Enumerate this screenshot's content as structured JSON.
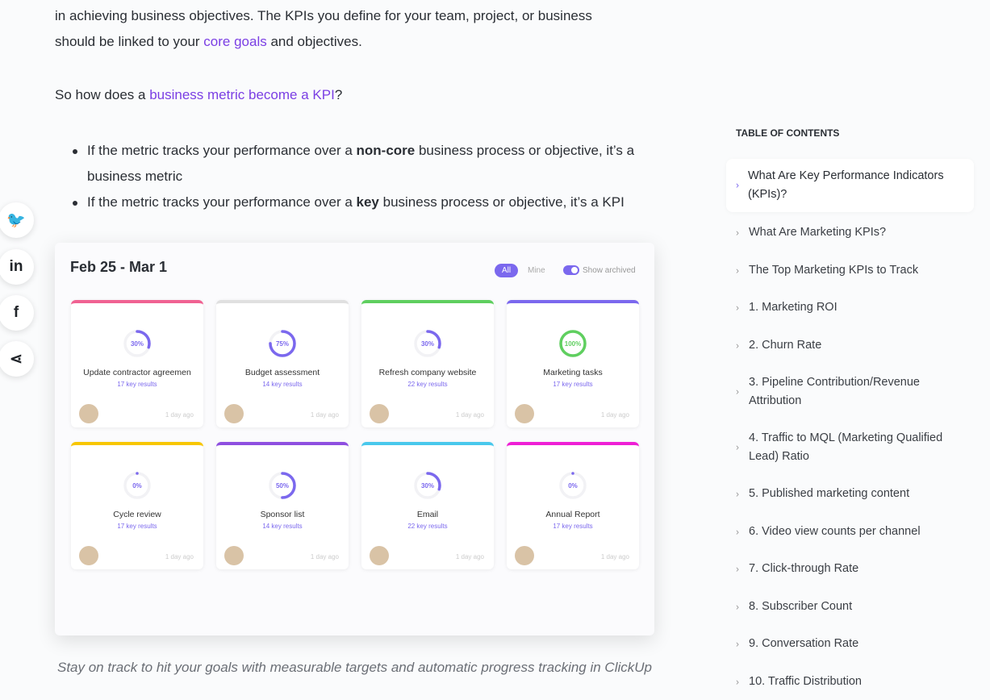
{
  "article": {
    "p1_line1": "in achieving business objectives. The KPIs you define for your team, project, or business",
    "p1_pre": "should be linked to your ",
    "p1_link": "core goals",
    "p1_post": " and objectives.",
    "p2_pre": "So how does a ",
    "p2_link": "business metric become a KPI",
    "p2_post": "?",
    "bullets": [
      {
        "pre": "If the metric tracks your performance over a ",
        "bold": "non-core",
        "post": " business process or objective, it’s a business metric"
      },
      {
        "pre": "If the metric tracks your performance over a ",
        "bold": "key",
        "post": " business process or objective, it’s a KPI"
      }
    ],
    "caption": "Stay on track to hit your goals with measurable targets and automatic progress tracking in ClickUp"
  },
  "social": [
    {
      "icon": "twitter-icon",
      "glyph": "🐦"
    },
    {
      "icon": "linkedin-icon",
      "glyph": "in"
    },
    {
      "icon": "facebook-icon",
      "glyph": "f"
    },
    {
      "icon": "share-icon",
      "glyph": "⋖"
    }
  ],
  "screenshot": {
    "title": "Feb 25 - Mar 1",
    "filter_all": "All",
    "filter_mine": "Mine",
    "show_archived": "Show archived",
    "accent": "#7b68ee",
    "cards": [
      {
        "title": "Update contractor agreemen",
        "key_results": "17 key results",
        "progress": 30,
        "color": "#f06292",
        "time": "1 day ago"
      },
      {
        "title": "Budget assessment",
        "key_results": "14 key results",
        "progress": 75,
        "color": "#e0e0e0",
        "time": "1 day ago"
      },
      {
        "title": "Refresh company website",
        "key_results": "22 key results",
        "progress": 30,
        "color": "#5fcf5f",
        "time": "1 day ago"
      },
      {
        "title": "Marketing tasks",
        "key_results": "17 key results",
        "progress": 100,
        "color": "#7b68ee",
        "time": "1 day ago"
      },
      {
        "title": "Cycle review",
        "key_results": "17 key results",
        "progress": 0,
        "color": "#f7c600",
        "time": "1 day ago"
      },
      {
        "title": "Sponsor list",
        "key_results": "14 key results",
        "progress": 50,
        "color": "#8e4fe0",
        "time": "1 day ago"
      },
      {
        "title": "Email",
        "key_results": "22 key results",
        "progress": 30,
        "color": "#49c8ec",
        "time": "1 day ago"
      },
      {
        "title": "Annual Report",
        "key_results": "17 key results",
        "progress": 0,
        "color": "#ee1fd5",
        "time": "1 day ago"
      }
    ]
  },
  "toc": {
    "heading": "TABLE OF CONTENTS",
    "items": [
      "What Are Key Performance Indicators (KPIs)?",
      "What Are Marketing KPIs?",
      "The Top Marketing KPIs to Track",
      "1. Marketing ROI",
      "2. Churn Rate",
      "3. Pipeline Contribution/Revenue Attribution",
      "4. Traffic to MQL (Marketing Qualified Lead) Ratio",
      "5. Published marketing content",
      "6. Video view counts per channel",
      "7. Click-through Rate",
      "8. Subscriber Count",
      "9. Conversation Rate",
      "10. Traffic Distribution"
    ]
  }
}
